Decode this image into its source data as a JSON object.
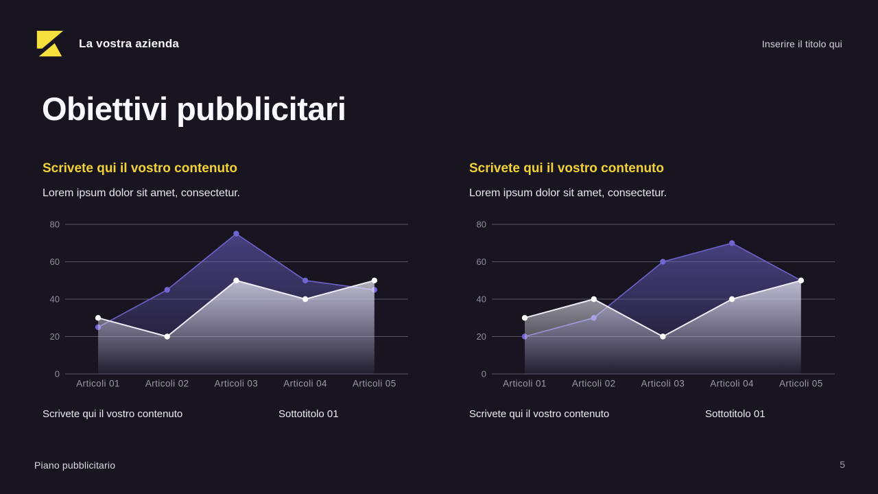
{
  "header": {
    "company_name": "La vostra azienda",
    "right_placeholder": "Inserire il titolo qui"
  },
  "title": "Obiettivi pubblicitari",
  "columns": [
    {
      "heading": "Scrivete qui il vostro contenuto",
      "body": "Lorem ipsum dolor sit amet, consectetur.",
      "caption_left": "Scrivete qui il vostro contenuto",
      "caption_right": "Sottotitolo 01"
    },
    {
      "heading": "Scrivete qui il vostro contenuto",
      "body": "Lorem ipsum dolor sit amet, consectetur.",
      "caption_left": "Scrivete qui il vostro contenuto",
      "caption_right": "Sottotitolo 01"
    }
  ],
  "chart_data": [
    {
      "type": "area",
      "categories": [
        "Articoli 01",
        "Articoli 02",
        "Articoli 03",
        "Articoli 04",
        "Articoli 05"
      ],
      "series": [
        {
          "name": "series-purple",
          "values": [
            25,
            45,
            75,
            50,
            45
          ],
          "color": "#6e63cc",
          "dot": "#7165d2",
          "fill_top": "rgba(109,99,202,0.55)",
          "fill_bottom": "rgba(109,99,202,0.05)"
        },
        {
          "name": "series-white",
          "values": [
            30,
            20,
            50,
            40,
            50
          ],
          "color": "#efeef6",
          "dot": "#ffffff",
          "fill_top": "rgba(242,242,250,0.70)",
          "fill_bottom": "rgba(242,242,250,0.02)"
        }
      ],
      "ylim": [
        0,
        80
      ],
      "yticks": [
        0,
        20,
        40,
        60,
        80
      ],
      "grid": true,
      "legend": "none",
      "xlabel": "",
      "ylabel": ""
    },
    {
      "type": "area",
      "categories": [
        "Articoli 01",
        "Articoli 02",
        "Articoli 03",
        "Articoli 04",
        "Articoli 05"
      ],
      "series": [
        {
          "name": "series-purple",
          "values": [
            20,
            30,
            60,
            70,
            50
          ],
          "color": "#6e63cc",
          "dot": "#7165d2",
          "fill_top": "rgba(109,99,202,0.55)",
          "fill_bottom": "rgba(109,99,202,0.05)"
        },
        {
          "name": "series-white",
          "values": [
            30,
            40,
            20,
            40,
            50
          ],
          "color": "#efeef6",
          "dot": "#ffffff",
          "fill_top": "rgba(242,242,250,0.70)",
          "fill_bottom": "rgba(242,242,250,0.02)"
        }
      ],
      "ylim": [
        0,
        80
      ],
      "yticks": [
        0,
        20,
        40,
        60,
        80
      ],
      "grid": true,
      "legend": "none",
      "xlabel": "",
      "ylabel": ""
    }
  ],
  "footer": {
    "left": "Piano pubblicitario",
    "page_number": "5"
  },
  "colors": {
    "background": "#181521",
    "accent_yellow": "#f1d237",
    "logo_yellow": "#f5e03e",
    "purple_series": "#6e63cc",
    "white_series": "#efeef6",
    "grid_line": "rgba(223,222,236,0.33)",
    "tick_label": "#908da0",
    "category_label": "#9d9aab"
  }
}
